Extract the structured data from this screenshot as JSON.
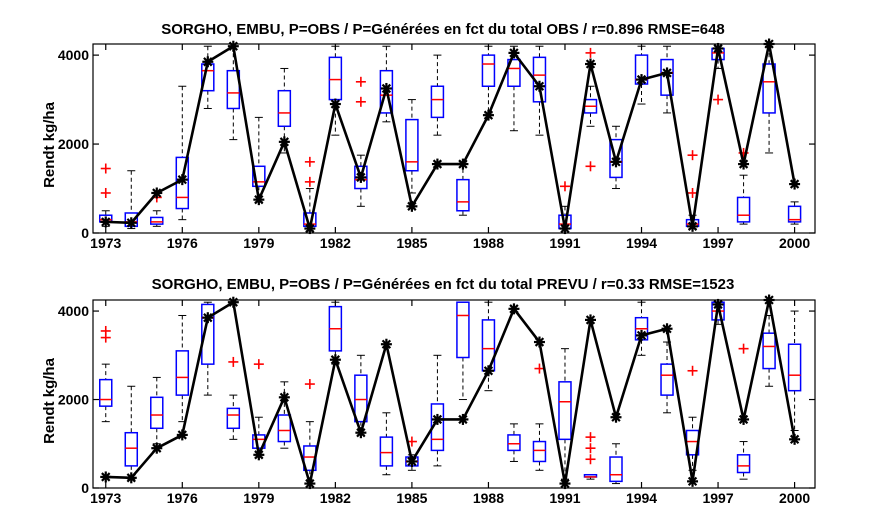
{
  "chart_data": [
    {
      "type": "boxplot",
      "title": "SORGHO, EMBU, P=OBS / P=Générées en fct du total OBS / r=0.896 RMSE=648",
      "ylabel": "Rendt kg/ha",
      "xlabel": "",
      "xlim": [
        1972.5,
        2000.8
      ],
      "ylim": [
        0,
        4250
      ],
      "x_ticks": [
        1973,
        1976,
        1979,
        1982,
        1985,
        1988,
        1991,
        1994,
        1997,
        2000
      ],
      "y_ticks": [
        0,
        2000,
        4000
      ],
      "series": [
        {
          "kind": "observed_line",
          "marker": "*",
          "color": "#000000",
          "x": [
            1973,
            1974,
            1975,
            1976,
            1977,
            1978,
            1979,
            1980,
            1981,
            1982,
            1983,
            1984,
            1985,
            1986,
            1987,
            1988,
            1989,
            1990,
            1991,
            1992,
            1993,
            1994,
            1995,
            1996,
            1997,
            1998,
            1999,
            2000
          ],
          "y": [
            250,
            230,
            900,
            1200,
            3850,
            4200,
            750,
            2050,
            100,
            2900,
            1250,
            3250,
            600,
            1550,
            1550,
            2650,
            4050,
            3300,
            100,
            3800,
            1600,
            3450,
            3600,
            150,
            4150,
            1550,
            4250,
            1100
          ]
        },
        {
          "kind": "boxes",
          "box_color": "#0000ff",
          "median_color": "#ff0000",
          "whisker_color": "#000000",
          "outlier_color": "#ff0000",
          "boxes": [
            {
              "x": 1973,
              "lw": 150,
              "q1": 250,
              "med": 300,
              "q3": 400,
              "uw": 500,
              "out": [
                1450,
                900
              ]
            },
            {
              "x": 1974,
              "lw": 100,
              "q1": 150,
              "med": 250,
              "q3": 450,
              "uw": 1400,
              "out": []
            },
            {
              "x": 1975,
              "lw": 150,
              "q1": 200,
              "med": 250,
              "q3": 350,
              "uw": 500,
              "out": [
                800
              ]
            },
            {
              "x": 1976,
              "lw": 300,
              "q1": 550,
              "med": 800,
              "q3": 1700,
              "uw": 3300,
              "out": []
            },
            {
              "x": 1977,
              "lw": 2800,
              "q1": 3200,
              "med": 3650,
              "q3": 3800,
              "uw": 4200,
              "out": []
            },
            {
              "x": 1978,
              "lw": 2100,
              "q1": 2800,
              "med": 3150,
              "q3": 3650,
              "uw": 4200,
              "out": []
            },
            {
              "x": 1979,
              "lw": 700,
              "q1": 1050,
              "med": 1150,
              "q3": 1500,
              "uw": 2600,
              "out": []
            },
            {
              "x": 1980,
              "lw": 1800,
              "q1": 2400,
              "med": 2700,
              "q3": 3200,
              "uw": 3700,
              "out": []
            },
            {
              "x": 1981,
              "lw": 50,
              "q1": 150,
              "med": 200,
              "q3": 450,
              "uw": 1000,
              "out": [
                1600,
                1150
              ]
            },
            {
              "x": 1982,
              "lw": 2200,
              "q1": 3000,
              "med": 3450,
              "q3": 3950,
              "uw": 4200,
              "out": []
            },
            {
              "x": 1983,
              "lw": 600,
              "q1": 1000,
              "med": 1200,
              "q3": 1500,
              "uw": 1750,
              "out": [
                3400,
                2950
              ]
            },
            {
              "x": 1984,
              "lw": 2500,
              "q1": 2700,
              "med": 3100,
              "q3": 3650,
              "uw": 4200,
              "out": []
            },
            {
              "x": 1985,
              "lw": 900,
              "q1": 1400,
              "med": 1600,
              "q3": 2550,
              "uw": 3000,
              "out": []
            },
            {
              "x": 1986,
              "lw": 2200,
              "q1": 2600,
              "med": 3000,
              "q3": 3300,
              "uw": 4000,
              "out": []
            },
            {
              "x": 1987,
              "lw": 400,
              "q1": 500,
              "med": 700,
              "q3": 1200,
              "uw": 1600,
              "out": []
            },
            {
              "x": 1988,
              "lw": 2700,
              "q1": 3300,
              "med": 3800,
              "q3": 4000,
              "uw": 4200,
              "out": []
            },
            {
              "x": 1989,
              "lw": 2300,
              "q1": 3300,
              "med": 3700,
              "q3": 3900,
              "uw": 4200,
              "out": []
            },
            {
              "x": 1990,
              "lw": 2200,
              "q1": 2950,
              "med": 3550,
              "q3": 3950,
              "uw": 4200,
              "out": []
            },
            {
              "x": 1991,
              "lw": 0,
              "q1": 100,
              "med": 200,
              "q3": 400,
              "uw": 600,
              "out": [
                1050
              ]
            },
            {
              "x": 1992,
              "lw": 2400,
              "q1": 2700,
              "med": 2850,
              "q3": 3000,
              "uw": 3300,
              "out": [
                4050,
                1500
              ]
            },
            {
              "x": 1993,
              "lw": 1000,
              "q1": 1250,
              "med": 1600,
              "q3": 2100,
              "uw": 2400,
              "out": []
            },
            {
              "x": 1994,
              "lw": 2900,
              "q1": 3350,
              "med": 3450,
              "q3": 4000,
              "uw": 4200,
              "out": []
            },
            {
              "x": 1995,
              "lw": 2700,
              "q1": 3100,
              "med": 3600,
              "q3": 3900,
              "uw": 4200,
              "out": []
            },
            {
              "x": 1996,
              "lw": 100,
              "q1": 150,
              "med": 200,
              "q3": 300,
              "uw": 400,
              "out": [
                1750,
                900
              ]
            },
            {
              "x": 1997,
              "lw": 3700,
              "q1": 3900,
              "med": 4050,
              "q3": 4150,
              "uw": 4200,
              "out": [
                3000
              ]
            },
            {
              "x": 1998,
              "lw": 200,
              "q1": 250,
              "med": 400,
              "q3": 800,
              "uw": 1300,
              "out": [
                1800
              ]
            },
            {
              "x": 1999,
              "lw": 1800,
              "q1": 2700,
              "med": 3400,
              "q3": 3800,
              "uw": 4200,
              "out": []
            },
            {
              "x": 2000,
              "lw": 200,
              "q1": 250,
              "med": 300,
              "q3": 600,
              "uw": 700,
              "out": []
            }
          ]
        }
      ]
    },
    {
      "type": "boxplot",
      "title": "SORGHO, EMBU, P=OBS / P=Générées en fct du total PREVU / r=0.33 RMSE=1523",
      "ylabel": "Rendt kg/ha",
      "xlabel": "",
      "xlim": [
        1972.5,
        2000.8
      ],
      "ylim": [
        0,
        4250
      ],
      "x_ticks": [
        1973,
        1976,
        1979,
        1982,
        1985,
        1988,
        1991,
        1994,
        1997,
        2000
      ],
      "y_ticks": [
        0,
        2000,
        4000
      ],
      "series": [
        {
          "kind": "observed_line",
          "marker": "*",
          "color": "#000000",
          "x": [
            1973,
            1974,
            1975,
            1976,
            1977,
            1978,
            1979,
            1980,
            1981,
            1982,
            1983,
            1984,
            1985,
            1986,
            1987,
            1988,
            1989,
            1990,
            1991,
            1992,
            1993,
            1994,
            1995,
            1996,
            1997,
            1998,
            1999,
            2000
          ],
          "y": [
            250,
            230,
            900,
            1200,
            3850,
            4200,
            750,
            2050,
            100,
            2900,
            1250,
            3250,
            600,
            1550,
            1550,
            2650,
            4050,
            3300,
            100,
            3800,
            1600,
            3450,
            3600,
            150,
            4150,
            1550,
            4250,
            1100
          ]
        },
        {
          "kind": "boxes",
          "box_color": "#0000ff",
          "median_color": "#ff0000",
          "whisker_color": "#000000",
          "outlier_color": "#ff0000",
          "boxes": [
            {
              "x": 1973,
              "lw": 1500,
              "q1": 1850,
              "med": 2000,
              "q3": 2450,
              "uw": 2800,
              "out": [
                3550,
                3400
              ]
            },
            {
              "x": 1974,
              "lw": 200,
              "q1": 500,
              "med": 900,
              "q3": 1250,
              "uw": 2300,
              "out": []
            },
            {
              "x": 1975,
              "lw": 1000,
              "q1": 1350,
              "med": 1650,
              "q3": 2050,
              "uw": 2500,
              "out": []
            },
            {
              "x": 1976,
              "lw": 1500,
              "q1": 2100,
              "med": 2500,
              "q3": 3100,
              "uw": 3900,
              "out": []
            },
            {
              "x": 1977,
              "lw": 2100,
              "q1": 2800,
              "med": 3850,
              "q3": 4150,
              "uw": 4200,
              "out": []
            },
            {
              "x": 1978,
              "lw": 1100,
              "q1": 1350,
              "med": 1650,
              "q3": 1800,
              "uw": 2100,
              "out": [
                2850
              ]
            },
            {
              "x": 1979,
              "lw": 700,
              "q1": 900,
              "med": 1100,
              "q3": 1200,
              "uw": 1600,
              "out": [
                2800
              ]
            },
            {
              "x": 1980,
              "lw": 900,
              "q1": 1050,
              "med": 1300,
              "q3": 1650,
              "uw": 2400,
              "out": []
            },
            {
              "x": 1981,
              "lw": 100,
              "q1": 400,
              "med": 700,
              "q3": 950,
              "uw": 1500,
              "out": [
                2350
              ]
            },
            {
              "x": 1982,
              "lw": 2800,
              "q1": 3100,
              "med": 3600,
              "q3": 4100,
              "uw": 4200,
              "out": []
            },
            {
              "x": 1983,
              "lw": 1200,
              "q1": 1500,
              "med": 2000,
              "q3": 2550,
              "uw": 3000,
              "out": []
            },
            {
              "x": 1984,
              "lw": 300,
              "q1": 500,
              "med": 800,
              "q3": 1150,
              "uw": 1700,
              "out": []
            },
            {
              "x": 1985,
              "lw": 400,
              "q1": 500,
              "med": 600,
              "q3": 700,
              "uw": 750,
              "out": [
                1050
              ]
            },
            {
              "x": 1986,
              "lw": 500,
              "q1": 850,
              "med": 1100,
              "q3": 1900,
              "uw": 3000,
              "out": []
            },
            {
              "x": 1987,
              "lw": 2000,
              "q1": 2950,
              "med": 3900,
              "q3": 4200,
              "uw": 4200,
              "out": []
            },
            {
              "x": 1988,
              "lw": 2200,
              "q1": 2650,
              "med": 3150,
              "q3": 3800,
              "uw": 4200,
              "out": []
            },
            {
              "x": 1989,
              "lw": 600,
              "q1": 850,
              "med": 1000,
              "q3": 1200,
              "uw": 1450,
              "out": []
            },
            {
              "x": 1990,
              "lw": 400,
              "q1": 600,
              "med": 850,
              "q3": 1050,
              "uw": 1450,
              "out": [
                2700
              ]
            },
            {
              "x": 1991,
              "lw": 200,
              "q1": 1100,
              "med": 1950,
              "q3": 2400,
              "uw": 3150,
              "out": []
            },
            {
              "x": 1992,
              "lw": 200,
              "q1": 250,
              "med": 250,
              "q3": 300,
              "uw": 300,
              "out": [
                1150,
                900,
                650
              ]
            },
            {
              "x": 1993,
              "lw": 100,
              "q1": 150,
              "med": 300,
              "q3": 700,
              "uw": 1000,
              "out": []
            },
            {
              "x": 1994,
              "lw": 3000,
              "q1": 3350,
              "med": 3600,
              "q3": 3850,
              "uw": 4200,
              "out": []
            },
            {
              "x": 1995,
              "lw": 1700,
              "q1": 2100,
              "med": 2550,
              "q3": 2800,
              "uw": 3300,
              "out": []
            },
            {
              "x": 1996,
              "lw": 400,
              "q1": 750,
              "med": 1050,
              "q3": 1300,
              "uw": 1600,
              "out": [
                2650
              ]
            },
            {
              "x": 1997,
              "lw": 3700,
              "q1": 3800,
              "med": 4000,
              "q3": 4200,
              "uw": 4200,
              "out": []
            },
            {
              "x": 1998,
              "lw": 200,
              "q1": 350,
              "med": 500,
              "q3": 750,
              "uw": 1050,
              "out": [
                3150
              ]
            },
            {
              "x": 1999,
              "lw": 2300,
              "q1": 2700,
              "med": 3200,
              "q3": 3500,
              "uw": 3900,
              "out": []
            },
            {
              "x": 2000,
              "lw": 1300,
              "q1": 2200,
              "med": 2550,
              "q3": 3250,
              "uw": 4000,
              "out": []
            }
          ]
        }
      ]
    }
  ]
}
